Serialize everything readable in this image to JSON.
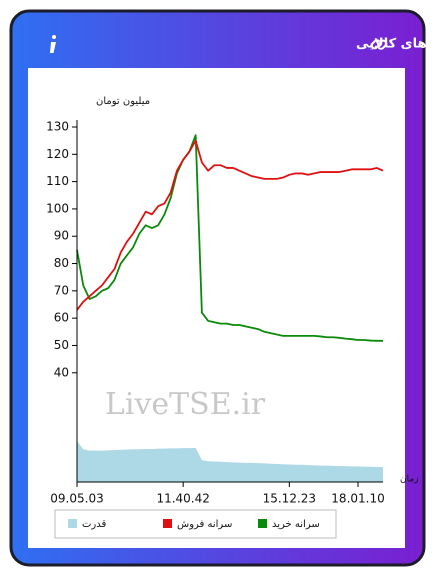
{
  "header": {
    "title": "سرانه ی خرید و فروش حقیقی در صندوق های کالایی"
  },
  "chart_data": {
    "type": "line",
    "y_label": "میلیون تومان",
    "x_label": "زمان",
    "watermark": "LiveTSE.ir",
    "categories": [
      "09.05.03",
      null,
      null,
      null,
      null,
      null,
      null,
      null,
      null,
      null,
      null,
      null,
      null,
      null,
      null,
      null,
      null,
      "11.40.42",
      null,
      null,
      null,
      null,
      null,
      null,
      null,
      null,
      null,
      null,
      null,
      null,
      null,
      null,
      null,
      null,
      "15.12.23",
      null,
      null,
      null,
      null,
      null,
      null,
      null,
      null,
      null,
      null,
      "18.01.10",
      null,
      null,
      null,
      null
    ],
    "ylim": [
      0,
      130
    ],
    "yticks": [
      40,
      50,
      60,
      70,
      80,
      90,
      100,
      110,
      120,
      130
    ],
    "series": [
      {
        "name": "سرانه خرید",
        "color": "#0a8a0a",
        "type": "line",
        "values": [
          85,
          72,
          67,
          68,
          70,
          71,
          74,
          80,
          83,
          86,
          91,
          94,
          93,
          94,
          98,
          104,
          113,
          118,
          121,
          127,
          62,
          59,
          58.5,
          58,
          58,
          57.5,
          57.5,
          57,
          56.5,
          56,
          55,
          54.5,
          54,
          53.5,
          53.5,
          53.5,
          53.5,
          53.5,
          53.5,
          53.3,
          53,
          53,
          52.8,
          52.5,
          52.3,
          52,
          52,
          51.8,
          51.7,
          51.7
        ]
      },
      {
        "name": "سرانه فروش",
        "color": "#e01010",
        "type": "line",
        "values": [
          63,
          66,
          68,
          70,
          72,
          75,
          78,
          84,
          88,
          91,
          95,
          99,
          98,
          101,
          102,
          106,
          114,
          118,
          121,
          125,
          117,
          114,
          116,
          116,
          115,
          115,
          114,
          113,
          112,
          111.5,
          111,
          111,
          111,
          111.5,
          112.5,
          113,
          113,
          112.5,
          113,
          113.5,
          113.5,
          113.5,
          113.5,
          114,
          114.5,
          114.5,
          114.5,
          114.5,
          115,
          114
        ]
      },
      {
        "name": "قدرت",
        "color": "#add8e6",
        "type": "area",
        "values": [
          15,
          12,
          11.5,
          11.5,
          11.5,
          11.6,
          11.7,
          11.8,
          11.9,
          12,
          12,
          12.1,
          12.1,
          12.2,
          12.2,
          12.3,
          12.3,
          12.4,
          12.4,
          12.5,
          8,
          7.6,
          7.5,
          7.4,
          7.3,
          7.2,
          7.1,
          7,
          7,
          6.9,
          6.8,
          6.7,
          6.6,
          6.5,
          6.4,
          6.3,
          6.3,
          6.2,
          6.1,
          6,
          6,
          5.9,
          5.8,
          5.8,
          5.7,
          5.7,
          5.6,
          5.6,
          5.5,
          5.5
        ]
      }
    ]
  }
}
